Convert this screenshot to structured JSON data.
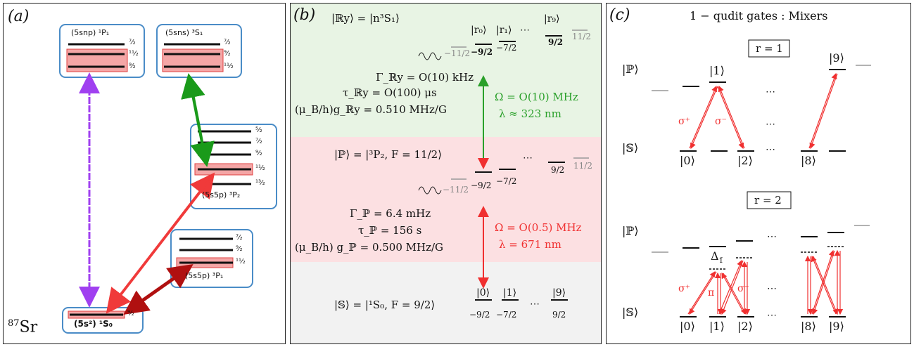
{
  "panel_a": {
    "label": "(a)",
    "isotope": "87Sr",
    "isotope_mass": "87",
    "isotope_symbol": "Sr",
    "snp_label": "(5snp) ¹P₁",
    "sns_label": "(5sns) ³S₁",
    "p2_label": "(5s5p) ³P₂",
    "p1_label": "(5s5p) ³P₁",
    "s0_label": "(5s²) ¹S₀",
    "snp_levels": [
      "⁷⁄₂",
      "¹¹⁄₂",
      "⁹⁄₂"
    ],
    "sns_levels": [
      "⁷⁄₂",
      "⁹⁄₂",
      "¹¹⁄₂"
    ],
    "p2_levels": [
      "⁵⁄₂",
      "⁷⁄₂",
      "⁹⁄₂",
      "¹¹⁄₂",
      "¹³⁄₂"
    ],
    "p1_levels": [
      "⁷⁄₂",
      "⁹⁄₂",
      "¹¹⁄₂"
    ],
    "s0_level": "⁹⁄₂",
    "colors": {
      "box": "#4a8cc7",
      "highlight": "#f4a6a6",
      "purple": "#a040f0",
      "green": "#1a9a1a",
      "red": "#f03a3a",
      "darkred": "#b01010"
    }
  },
  "panel_b": {
    "label": "(b)",
    "ry_state": "|ℝy⟩ = |n³S₁⟩",
    "ry_gamma": "Γ_ℝy = O(10) kHz",
    "ry_tau": "τ_ℝy = O(100) μs",
    "ry_g": "(μ_B/h)g_ℝy = 0.510 MHz/G",
    "ry_kets": [
      "|r₀⟩",
      "|r₁⟩",
      "|r₉⟩"
    ],
    "ry_mF": [
      "−11/2",
      "−9/2",
      "−7/2",
      "9/2",
      "11/2"
    ],
    "ry_omega": "Ω = O(10) MHz",
    "ry_lambda": "λ ≈ 323 nm",
    "p_state": "|ℙ⟩ = |³P₂, F = 11/2⟩",
    "p_gamma": "Γ_ℙ = 6.4 mHz",
    "p_tau": "τ_ℙ = 156 s",
    "p_g": "(μ_B/h) g_ℙ = 0.500 MHz/G",
    "p_mF": [
      "−11/2",
      "−9/2",
      "−7/2",
      "9/2",
      "11/2"
    ],
    "p_omega": "Ω = O(0.5) MHz",
    "p_lambda": "λ = 671 nm",
    "s_state": "|𝕊⟩ = |¹S₀, F = 9/2⟩",
    "s_kets": [
      "|0⟩",
      "|1⟩",
      "|9⟩"
    ],
    "s_mF": [
      "−9/2",
      "−7/2",
      "9/2"
    ],
    "dots": "⋯",
    "colors": {
      "green_bg": "#e8f4e4",
      "red_bg": "#fce0e2",
      "gray_bg": "#f2f2f2",
      "green": "#2aa02a",
      "red": "#f03030"
    }
  },
  "panel_c": {
    "label": "(c)",
    "title": "1 − qudit gates : Mixers",
    "r1": "r = 1",
    "r2": "r = 2",
    "P": "|ℙ⟩",
    "S": "|𝕊⟩",
    "ket1": "|1⟩",
    "ket9": "|9⟩",
    "s_kets_r1": [
      "|0⟩",
      "|2⟩",
      "|8⟩"
    ],
    "s_kets_r2": [
      "|0⟩",
      "|1⟩",
      "|2⟩",
      "|8⟩",
      "|9⟩"
    ],
    "sigma_plus": "σ⁺",
    "sigma_minus": "σ⁻",
    "pi": "π",
    "delta": "Δ",
    "delta_sub": "1̄",
    "dots": "⋯",
    "colors": {
      "red": "#f03030",
      "gray": "#999999"
    }
  }
}
